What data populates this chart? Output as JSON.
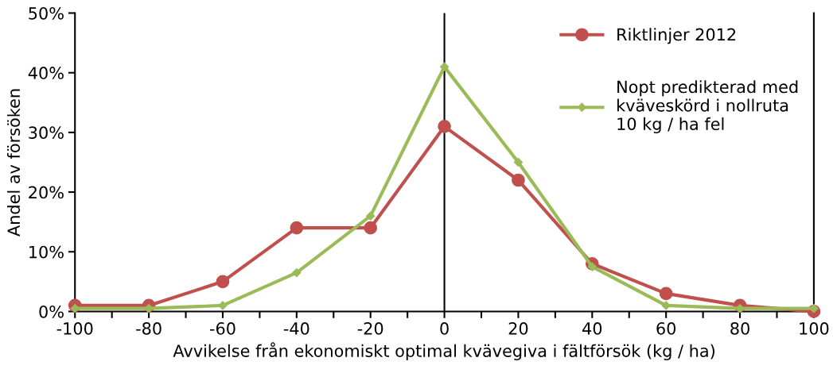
{
  "chart_data": {
    "type": "line",
    "xlabel": "Avvikelse från ekonomiskt optimal kvävegiva i fältförsök (kg / ha)",
    "ylabel": "Andel av försöken",
    "x": [
      -100,
      -80,
      -60,
      -40,
      -20,
      0,
      20,
      40,
      60,
      80,
      100
    ],
    "series": [
      {
        "name": "Riktlinjer 2012",
        "color": "#c0504d",
        "marker": "circle",
        "values": [
          1,
          1,
          5,
          14,
          14,
          31,
          22,
          8,
          3,
          1,
          0
        ]
      },
      {
        "name": "Nopt predikterad med\nkväveskörd i nollruta\n10 kg / ha fel",
        "color": "#9bbb59",
        "marker": "diamond",
        "values": [
          0.5,
          0.5,
          1,
          6.5,
          16,
          41,
          25,
          7.5,
          1,
          0.5,
          0.5
        ]
      }
    ],
    "xlim": [
      -100,
      100
    ],
    "xticks": [
      -100,
      {
        "value": -90,
        "label": null
      },
      -80,
      {
        "value": -70,
        "label": null
      },
      -60,
      {
        "value": -50,
        "label": null
      },
      -40,
      {
        "value": -30,
        "label": null
      },
      -20,
      {
        "value": -10,
        "label": null
      },
      0,
      {
        "value": 10,
        "label": null
      },
      20,
      {
        "value": 30,
        "label": null
      },
      40,
      {
        "value": 50,
        "label": null
      },
      60,
      {
        "value": 70,
        "label": null
      },
      80,
      {
        "value": 90,
        "label": null
      },
      100
    ],
    "ylim": [
      0,
      50
    ],
    "yticks": [
      {
        "value": 0,
        "label": "0%"
      },
      {
        "value": 10,
        "label": "10%"
      },
      {
        "value": 20,
        "label": "20%"
      },
      {
        "value": 30,
        "label": "30%"
      },
      {
        "value": 40,
        "label": "40%"
      },
      {
        "value": 50,
        "label": "50%"
      }
    ],
    "ref_lines": [
      {
        "axis": "x",
        "value": 0,
        "color": "#000000"
      }
    ],
    "grid": false,
    "legend": "top right"
  }
}
